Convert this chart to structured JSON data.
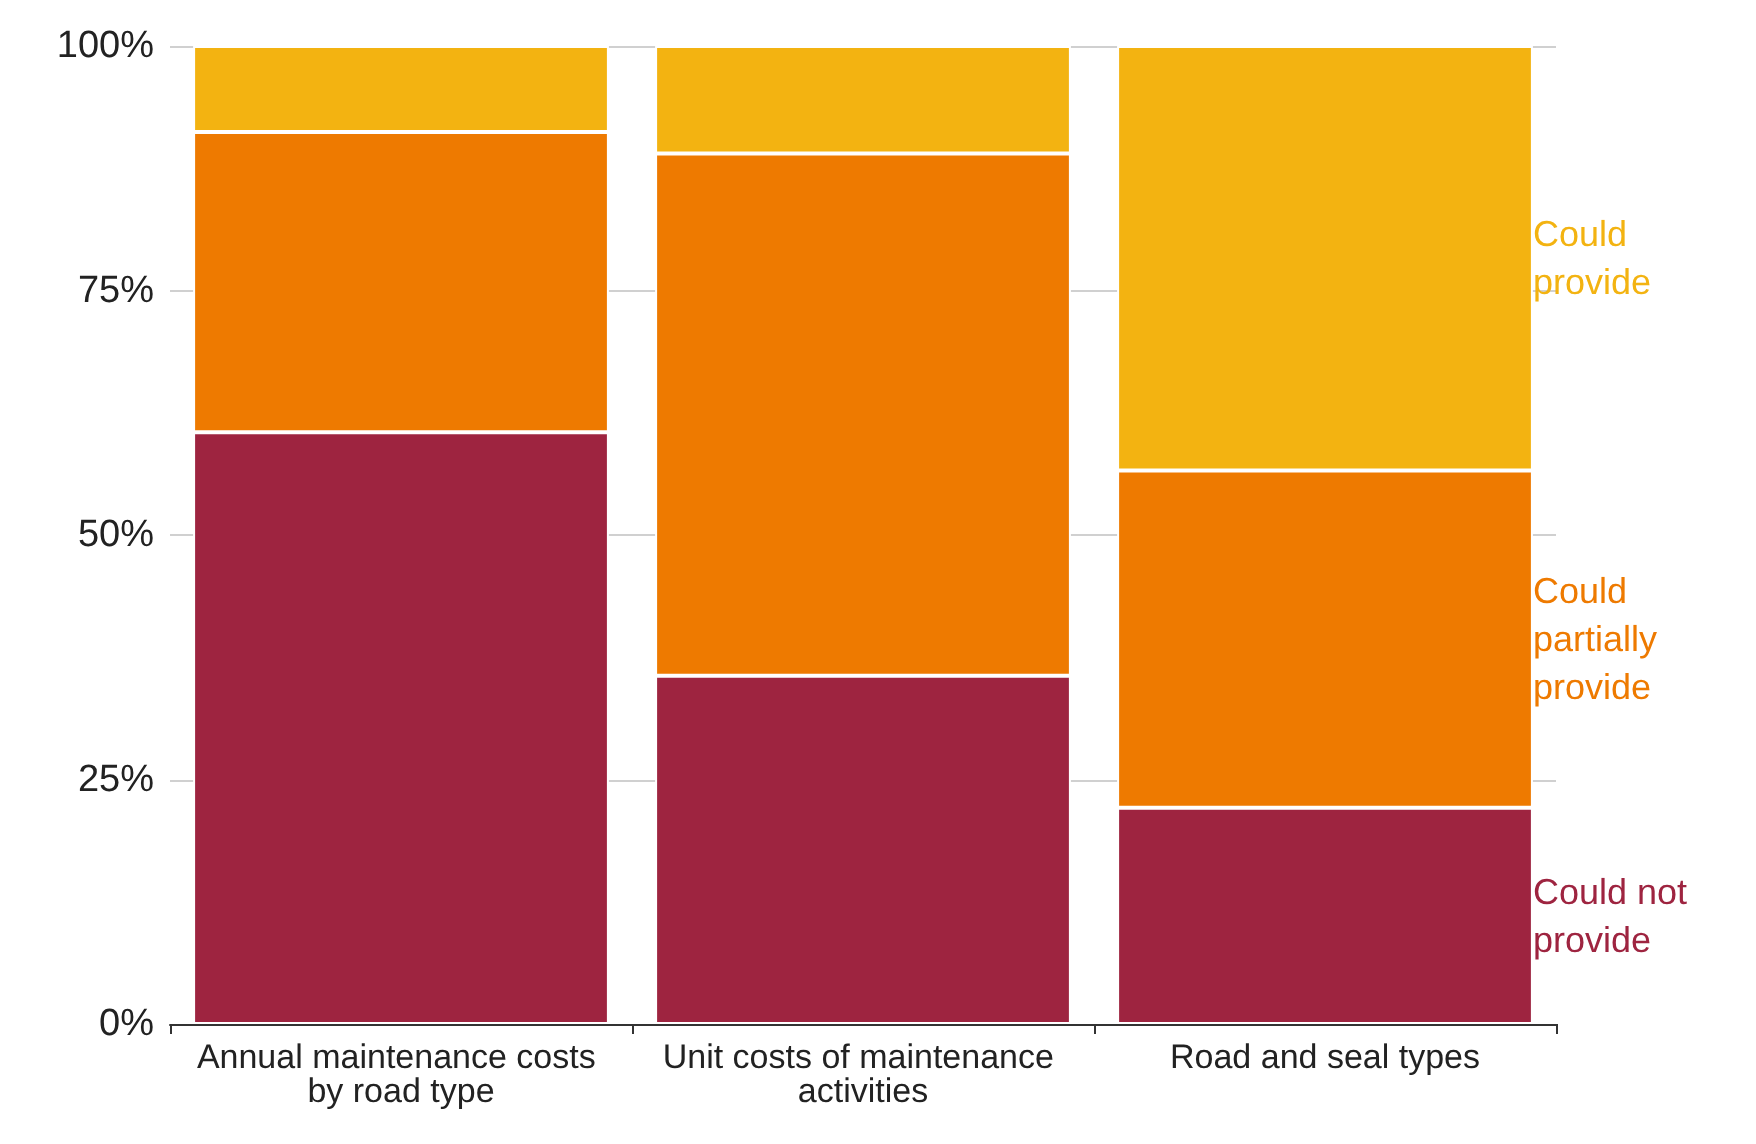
{
  "chart_data": {
    "type": "bar",
    "stacked": true,
    "categories": [
      "Annual maintenance costs by road type",
      "Unit costs of maintenance activities",
      "Road and seal types"
    ],
    "series": [
      {
        "name": "Could not provide",
        "color": "#9e2440",
        "values": [
          60.5,
          35.6,
          22.1
        ]
      },
      {
        "name": "Could partially provide",
        "color": "#ee7a00",
        "values": [
          30.7,
          53.4,
          34.5
        ]
      },
      {
        "name": "Could provide",
        "color": "#f3b311",
        "values": [
          8.8,
          11.0,
          43.4
        ]
      }
    ],
    "ylim": [
      0,
      100
    ],
    "yticks": [
      {
        "value": 0,
        "label": "0%"
      },
      {
        "value": 25,
        "label": "25%"
      },
      {
        "value": 50,
        "label": "50%"
      },
      {
        "value": 75,
        "label": "75%"
      },
      {
        "value": 100,
        "label": "100%"
      }
    ],
    "grid": "y",
    "legend": "right"
  }
}
